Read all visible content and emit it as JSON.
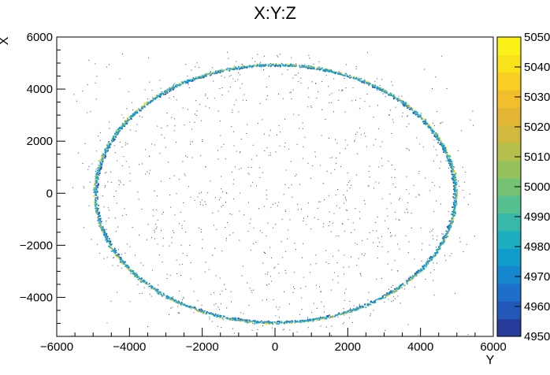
{
  "chart_data": {
    "type": "scatter",
    "title": "X:Y:Z",
    "xlabel": "Y",
    "ylabel": "X",
    "xlim": [
      -6000,
      6000
    ],
    "ylim": [
      -5500,
      6000
    ],
    "x_ticks": [
      -6000,
      -4000,
      -2000,
      0,
      2000,
      4000,
      6000
    ],
    "x_tick_labels": [
      "−6000",
      "−4000",
      "−2000",
      "0",
      "2000",
      "4000",
      "6000"
    ],
    "y_ticks": [
      -4000,
      -2000,
      0,
      2000,
      4000,
      6000
    ],
    "y_tick_labels": [
      "−4000",
      "−2000",
      "0",
      "2000",
      "4000",
      "6000"
    ],
    "ring": {
      "center": [
        0,
        0
      ],
      "radius_y_axis": 4950,
      "radius_x_axis": 4950
    },
    "colorbar": {
      "range": [
        4950,
        5050
      ],
      "tick_labels": [
        "4950",
        "4960",
        "4970",
        "4980",
        "4990",
        "5000",
        "5010",
        "5020",
        "5030",
        "5040",
        "5050"
      ],
      "colors": [
        "#283c9c",
        "#2458b8",
        "#1e6fc8",
        "#1686cf",
        "#119bcb",
        "#1daec0",
        "#38b8a8",
        "#56bf8f",
        "#76c275",
        "#96c25e",
        "#b4bf4c",
        "#d0b93e",
        "#e4b635",
        "#f2be2c",
        "#f8cf22",
        "#f9e21c",
        "#fbf21a"
      ]
    },
    "grid": false,
    "legend": "none"
  }
}
